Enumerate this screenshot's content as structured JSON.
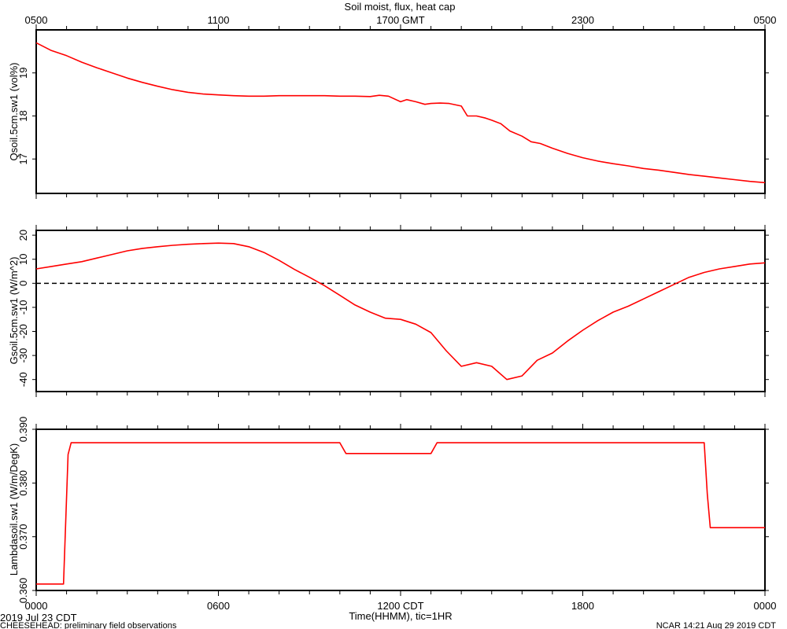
{
  "chart_data": [
    {
      "type": "line",
      "title": "Soil moist, flux, heat cap",
      "ylabel": "Qsoil.5cm.sw1  (vol%)",
      "ylim": [
        16.2,
        20.0
      ],
      "yticks": [
        17,
        18,
        19
      ],
      "xlim": [
        0,
        24
      ],
      "top_axis_ticks": [
        {
          "x": 0,
          "label": "0500"
        },
        {
          "x": 6,
          "label": "1100"
        },
        {
          "x": 12,
          "label": "1700 GMT"
        },
        {
          "x": 18,
          "label": "2300"
        },
        {
          "x": 24,
          "label": "0500"
        }
      ],
      "series": [
        {
          "color": "#ff0000",
          "x": [
            0,
            0.5,
            1,
            1.5,
            2,
            2.5,
            3,
            3.5,
            4,
            4.5,
            5,
            5.5,
            6,
            6.5,
            7,
            7.5,
            8,
            8.5,
            9,
            9.5,
            10,
            10.5,
            11,
            11.3,
            11.6,
            12,
            12.2,
            12.5,
            12.8,
            13,
            13.3,
            13.6,
            14,
            14.2,
            14.5,
            14.8,
            15,
            15.3,
            15.6,
            16,
            16.3,
            16.6,
            17,
            17.5,
            18,
            18.5,
            19,
            19.5,
            20,
            20.5,
            21,
            21.5,
            22,
            22.5,
            23,
            23.5,
            24
          ],
          "y": [
            19.7,
            19.52,
            19.4,
            19.25,
            19.12,
            19.0,
            18.88,
            18.78,
            18.69,
            18.61,
            18.55,
            18.51,
            18.49,
            18.47,
            18.46,
            18.46,
            18.47,
            18.47,
            18.47,
            18.47,
            18.46,
            18.46,
            18.45,
            18.48,
            18.46,
            18.33,
            18.38,
            18.33,
            18.27,
            18.29,
            18.3,
            18.29,
            18.23,
            18.0,
            18.0,
            17.95,
            17.9,
            17.82,
            17.65,
            17.53,
            17.4,
            17.36,
            17.25,
            17.13,
            17.03,
            16.95,
            16.89,
            16.84,
            16.78,
            16.74,
            16.69,
            16.64,
            16.6,
            16.56,
            16.52,
            16.48,
            16.45
          ]
        }
      ]
    },
    {
      "type": "line",
      "ylabel": "Gsoil.5cm.sw1  (W/m^2)",
      "ylim": [
        -45,
        22
      ],
      "yticks": [
        -40,
        -30,
        -20,
        -10,
        0,
        10,
        20
      ],
      "zero_line": true,
      "xlim": [
        0,
        24
      ],
      "series": [
        {
          "color": "#ff0000",
          "x": [
            0,
            0.5,
            1,
            1.5,
            2,
            2.5,
            3,
            3.5,
            4,
            4.5,
            5,
            5.5,
            6,
            6.5,
            7,
            7.5,
            8,
            8.5,
            9,
            9.5,
            10,
            10.5,
            11,
            11.5,
            12,
            12.5,
            13,
            13.5,
            14,
            14.5,
            15,
            15.5,
            16,
            16.5,
            17,
            17.5,
            18,
            18.5,
            19,
            19.5,
            20,
            20.5,
            21,
            21.5,
            22,
            22.5,
            23,
            23.5,
            24
          ],
          "y": [
            6,
            7,
            8,
            9,
            10.5,
            12,
            13.5,
            14.5,
            15.2,
            15.8,
            16.2,
            16.5,
            16.7,
            16.5,
            15.2,
            12.8,
            9.5,
            5.8,
            2.5,
            -1,
            -5,
            -9,
            -12,
            -14.5,
            -15,
            -17,
            -20.5,
            -28,
            -34.5,
            -33,
            -34.5,
            -40,
            -38.5,
            -32,
            -29,
            -24,
            -19.5,
            -15.5,
            -12,
            -9.5,
            -6.5,
            -3.5,
            -0.5,
            2.5,
            4.5,
            6,
            7,
            8,
            8.5
          ]
        }
      ]
    },
    {
      "type": "line",
      "ylabel": "Lambdasoil.sw1  (W/m/DegK)",
      "ylim": [
        0.36,
        0.39
      ],
      "yticks": [
        "0.360",
        "0.370",
        "0.380",
        "0.390"
      ],
      "xlim": [
        0,
        24
      ],
      "bottom_axis_ticks": [
        {
          "x": 0,
          "label": "0000"
        },
        {
          "x": 6,
          "label": "0600"
        },
        {
          "x": 12,
          "label": "1200 CDT"
        },
        {
          "x": 18,
          "label": "1800"
        },
        {
          "x": 24,
          "label": "0000"
        }
      ],
      "xlabel": "Time(HHMM), tic=1HR",
      "series": [
        {
          "color": "#ff0000",
          "x": [
            0,
            0.9,
            1.05,
            1.15,
            1.2,
            10.0,
            10.2,
            13.0,
            13.2,
            22.0,
            22.1,
            22.2,
            24
          ],
          "y": [
            0.3612,
            0.3612,
            0.3853,
            0.3875,
            0.3875,
            0.3875,
            0.3855,
            0.3855,
            0.3875,
            0.3875,
            0.378,
            0.3717,
            0.3717
          ]
        }
      ]
    }
  ],
  "footer": {
    "date_left": "2019 Jul 23 CDT",
    "project_left": "CHEESEHEAD: preliminary field observations",
    "stamp_right": "NCAR 14:21 Aug 29 2019 CDT"
  }
}
